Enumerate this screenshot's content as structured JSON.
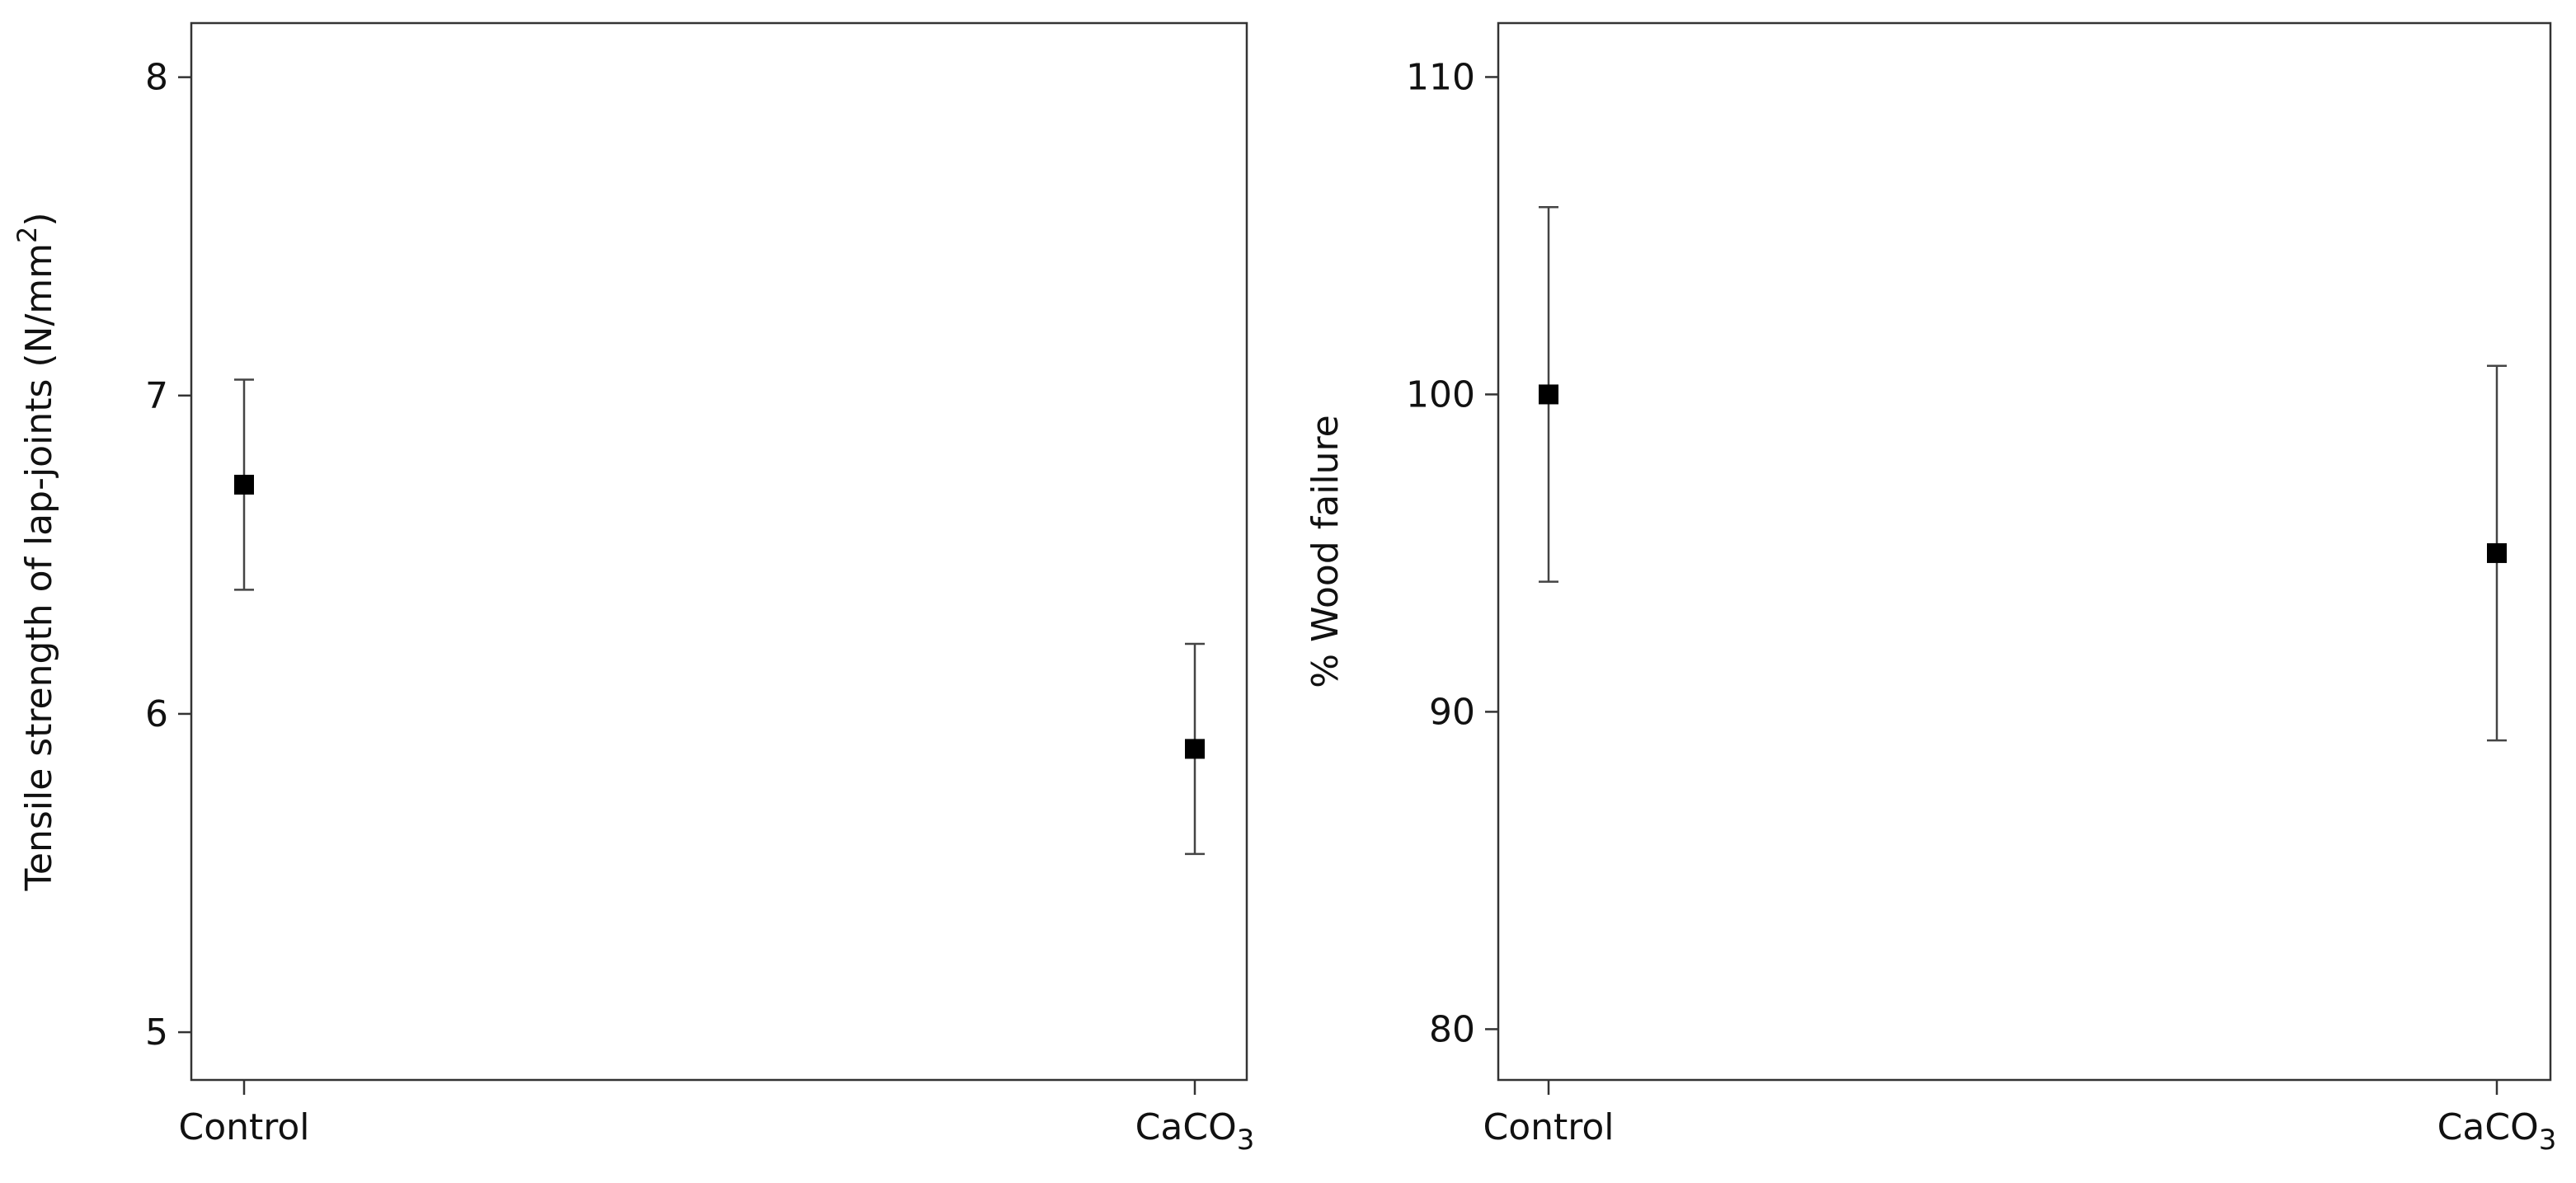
{
  "chart_data": [
    {
      "type": "scatter",
      "title": "",
      "categories": [
        "Control",
        "CaCO3"
      ],
      "category_labels": [
        {
          "base": "Control",
          "sub": ""
        },
        {
          "base": "CaCO",
          "sub": "3"
        }
      ],
      "xlabel": "",
      "ylabel": "Tensile strength of lap-joints (N/mm2)",
      "ylabel_parts": {
        "text": "Tensile strength of lap-joints (N/mm",
        "sup": "2",
        "close": ")"
      },
      "ylim": [
        4.85,
        8.17
      ],
      "yticks": [
        5,
        6,
        7,
        8
      ],
      "series": [
        {
          "values": [
            6.72,
            5.89
          ],
          "error_low": [
            6.39,
            5.56
          ],
          "error_high": [
            7.05,
            6.22
          ]
        }
      ],
      "grid": false,
      "legend": "none",
      "marker": "square",
      "marker_color": "#000000"
    },
    {
      "type": "scatter",
      "title": "",
      "categories": [
        "Control",
        "CaCO3"
      ],
      "category_labels": [
        {
          "base": "Control",
          "sub": ""
        },
        {
          "base": "CaCO",
          "sub": "3"
        }
      ],
      "xlabel": "",
      "ylabel": "% Wood failure",
      "ylabel_parts": {
        "text": "% Wood failure",
        "sup": "",
        "close": ""
      },
      "ylim": [
        78.4,
        111.7
      ],
      "yticks": [
        80,
        90,
        100,
        110
      ],
      "series": [
        {
          "values": [
            100,
            95
          ],
          "error_low": [
            94.1,
            89.1
          ],
          "error_high": [
            105.9,
            100.9
          ]
        }
      ],
      "grid": false,
      "legend": "none",
      "marker": "square",
      "marker_color": "#000000"
    }
  ]
}
